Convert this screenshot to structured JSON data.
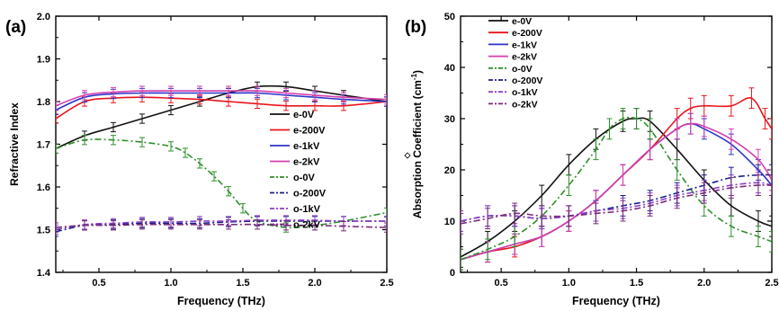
{
  "colors": {
    "e-0V": "#111111",
    "e-200V": "#e8141c",
    "e-1kV": "#2b35c8",
    "e-2kV": "#d63fae",
    "o-0V": "#2e8f2a",
    "o-200V": "#1b1f8a",
    "o-1kV": "#8b3fc8",
    "o-2kV": "#7a2a7a"
  },
  "chart_data": [
    {
      "panel_label": "(a)",
      "type": "line",
      "xlabel": "Frequency (THz)",
      "ylabel": "Refractive Index",
      "xlim": [
        0.2,
        2.5
      ],
      "ylim": [
        1.4,
        2.0
      ],
      "xticks": [
        "0.5",
        "1.0",
        "1.5",
        "2.0",
        "2.5"
      ],
      "yticks": [
        "1.4",
        "1.5",
        "1.6",
        "1.7",
        "1.8",
        "1.9",
        "2.0"
      ],
      "legend_position": "right",
      "legend": [
        "e-0V",
        "e-200V",
        "e-1kV",
        "e-2kV",
        "o-0V",
        "o-200V",
        "o-1kV",
        "o-2kV"
      ],
      "series": [
        {
          "name": "e-0V",
          "style": "solid",
          "x": [
            0.2,
            0.4,
            0.6,
            0.8,
            1.0,
            1.2,
            1.4,
            1.6,
            1.8,
            2.0,
            2.2,
            2.5
          ],
          "y": [
            1.69,
            1.72,
            1.74,
            1.76,
            1.78,
            1.8,
            1.82,
            1.835,
            1.835,
            1.825,
            1.815,
            1.8
          ]
        },
        {
          "name": "e-200V",
          "style": "solid",
          "x": [
            0.2,
            0.4,
            0.6,
            0.8,
            1.0,
            1.2,
            1.4,
            1.6,
            1.8,
            2.0,
            2.2,
            2.5
          ],
          "y": [
            1.76,
            1.8,
            1.808,
            1.81,
            1.808,
            1.805,
            1.8,
            1.795,
            1.79,
            1.79,
            1.79,
            1.8
          ]
        },
        {
          "name": "e-1kV",
          "style": "solid",
          "x": [
            0.2,
            0.4,
            0.6,
            0.8,
            1.0,
            1.2,
            1.4,
            1.6,
            1.8,
            2.0,
            2.2,
            2.5
          ],
          "y": [
            1.78,
            1.81,
            1.818,
            1.82,
            1.82,
            1.82,
            1.82,
            1.82,
            1.815,
            1.81,
            1.805,
            1.8
          ]
        },
        {
          "name": "e-2kV",
          "style": "solid",
          "x": [
            0.2,
            0.4,
            0.6,
            0.8,
            1.0,
            1.2,
            1.4,
            1.6,
            1.8,
            2.0,
            2.2,
            2.5
          ],
          "y": [
            1.79,
            1.815,
            1.822,
            1.825,
            1.825,
            1.825,
            1.825,
            1.825,
            1.82,
            1.815,
            1.81,
            1.805
          ]
        },
        {
          "name": "o-0V",
          "style": "dashdot",
          "x": [
            0.2,
            0.4,
            0.6,
            0.8,
            1.0,
            1.1,
            1.2,
            1.3,
            1.4,
            1.5,
            1.6,
            1.8,
            2.0,
            2.2,
            2.5
          ],
          "y": [
            1.69,
            1.71,
            1.71,
            1.705,
            1.695,
            1.68,
            1.655,
            1.625,
            1.59,
            1.55,
            1.52,
            1.505,
            1.51,
            1.52,
            1.54
          ]
        },
        {
          "name": "o-200V",
          "style": "dashdot",
          "x": [
            0.2,
            0.4,
            0.6,
            0.8,
            1.0,
            1.2,
            1.4,
            1.6,
            1.8,
            2.0,
            2.2,
            2.5
          ],
          "y": [
            1.495,
            1.51,
            1.512,
            1.515,
            1.515,
            1.515,
            1.518,
            1.52,
            1.52,
            1.52,
            1.52,
            1.52
          ]
        },
        {
          "name": "o-1kV",
          "style": "dashdot",
          "x": [
            0.2,
            0.4,
            0.6,
            0.8,
            1.0,
            1.2,
            1.4,
            1.6,
            1.8,
            2.0,
            2.2,
            2.5
          ],
          "y": [
            1.5,
            1.512,
            1.515,
            1.518,
            1.518,
            1.52,
            1.52,
            1.522,
            1.522,
            1.522,
            1.52,
            1.52
          ]
        },
        {
          "name": "o-2kV",
          "style": "dashdot",
          "x": [
            0.2,
            0.4,
            0.6,
            0.8,
            1.0,
            1.2,
            1.4,
            1.6,
            1.8,
            2.0,
            2.2,
            2.5
          ],
          "y": [
            1.505,
            1.51,
            1.51,
            1.512,
            1.512,
            1.512,
            1.512,
            1.512,
            1.51,
            1.51,
            1.508,
            1.505
          ]
        }
      ]
    },
    {
      "panel_label": "(b)",
      "type": "line",
      "xlabel": "Frequency (THz)",
      "ylabel": "Absorption Coefficient (cm",
      "ylabel_sup": "-1",
      "ylabel_end": ")",
      "xlim": [
        0.2,
        2.5
      ],
      "ylim": [
        0,
        50
      ],
      "xticks": [
        "0.5",
        "1.0",
        "1.5",
        "2.0",
        "2.5"
      ],
      "yticks": [
        "0",
        "10",
        "20",
        "30",
        "40",
        "50"
      ],
      "legend_position": "top-left",
      "legend": [
        "e-0V",
        "e-200V",
        "e-1kV",
        "e-2kV",
        "o-0V",
        "o-200V",
        "o-1kV",
        "o-2kV"
      ],
      "series": [
        {
          "name": "e-0V",
          "style": "solid",
          "x": [
            0.2,
            0.4,
            0.6,
            0.8,
            1.0,
            1.2,
            1.4,
            1.5,
            1.6,
            1.8,
            2.0,
            2.2,
            2.4,
            2.5
          ],
          "y": [
            3,
            6,
            10,
            15,
            21,
            26,
            29.5,
            30,
            29.5,
            24,
            18,
            13,
            10,
            9
          ]
        },
        {
          "name": "e-200V",
          "style": "solid",
          "x": [
            0.2,
            0.4,
            0.6,
            0.8,
            1.0,
            1.2,
            1.4,
            1.6,
            1.8,
            1.9,
            2.0,
            2.2,
            2.35,
            2.45,
            2.5
          ],
          "y": [
            2.5,
            4,
            5,
            7,
            10,
            14,
            19,
            24,
            30,
            32,
            32.5,
            32.5,
            34,
            30,
            28
          ]
        },
        {
          "name": "e-1kV",
          "style": "solid",
          "x": [
            0.2,
            0.4,
            0.6,
            0.8,
            1.0,
            1.2,
            1.4,
            1.6,
            1.8,
            1.9,
            2.0,
            2.2,
            2.4,
            2.5
          ],
          "y": [
            2.5,
            4,
            5.5,
            7,
            10,
            14,
            19,
            24,
            28,
            29,
            28,
            25,
            20,
            17
          ]
        },
        {
          "name": "e-2kV",
          "style": "solid",
          "x": [
            0.2,
            0.4,
            0.6,
            0.8,
            1.0,
            1.2,
            1.4,
            1.6,
            1.8,
            1.9,
            2.0,
            2.2,
            2.4,
            2.5
          ],
          "y": [
            2.5,
            4,
            5.5,
            7,
            10,
            14,
            19,
            24,
            28,
            29,
            28.5,
            26,
            22,
            18
          ]
        },
        {
          "name": "o-0V",
          "style": "dashdot",
          "x": [
            0.2,
            0.4,
            0.6,
            0.8,
            1.0,
            1.2,
            1.3,
            1.4,
            1.5,
            1.6,
            1.8,
            2.0,
            2.2,
            2.4,
            2.5
          ],
          "y": [
            2.5,
            4.5,
            7,
            11,
            17,
            24,
            28,
            30,
            30,
            28,
            20,
            13,
            9,
            7,
            6
          ]
        },
        {
          "name": "o-200V",
          "style": "dashdot",
          "x": [
            0.2,
            0.4,
            0.6,
            0.8,
            1.0,
            1.2,
            1.4,
            1.6,
            1.8,
            2.0,
            2.2,
            2.4,
            2.5
          ],
          "y": [
            10,
            11,
            11,
            10.5,
            11,
            12,
            13,
            14,
            15.5,
            17,
            18.5,
            19,
            19
          ]
        },
        {
          "name": "o-1kV",
          "style": "dashdot",
          "x": [
            0.2,
            0.4,
            0.6,
            0.8,
            1.0,
            1.2,
            1.4,
            1.6,
            1.8,
            2.0,
            2.2,
            2.4,
            2.5
          ],
          "y": [
            10,
            11,
            11,
            10.5,
            11,
            12,
            12.5,
            13.5,
            15,
            16,
            17,
            17.5,
            17
          ]
        },
        {
          "name": "o-2kV",
          "style": "dashdot",
          "x": [
            0.2,
            0.4,
            0.6,
            0.8,
            1.0,
            1.2,
            1.4,
            1.6,
            1.8,
            2.0,
            2.2,
            2.4,
            2.5
          ],
          "y": [
            9.5,
            10.5,
            11.5,
            11,
            11,
            11.5,
            12,
            13,
            14.5,
            15.5,
            16.5,
            17,
            17
          ]
        }
      ]
    }
  ]
}
